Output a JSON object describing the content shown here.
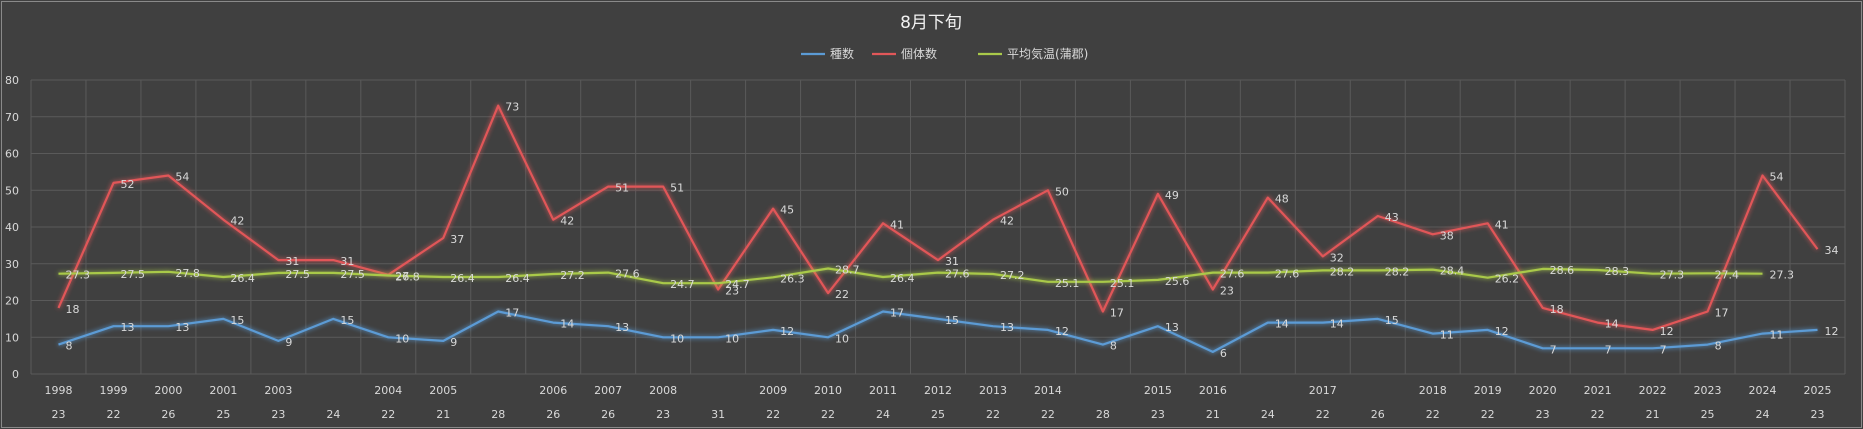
{
  "chart_data": {
    "type": "line",
    "title": "8月下旬",
    "ylim": [
      0,
      80
    ],
    "yticks": [
      0,
      10,
      20,
      30,
      40,
      50,
      60,
      70,
      80
    ],
    "grid": true,
    "legend_position": "top-center",
    "x_years": [
      "1998",
      "1999",
      "2000",
      "2001",
      "2003",
      "",
      "2004",
      "2005",
      "",
      "2006",
      "2007",
      "2008",
      "",
      "2009",
      "2010",
      "2011",
      "2012",
      "2013",
      "2014",
      "",
      "2015",
      "2016",
      "",
      "2017",
      "",
      "2018",
      "2019",
      "2020",
      "2021",
      "2022",
      "2023",
      "2024",
      "2025"
    ],
    "x_days": [
      "23",
      "22",
      "26",
      "25",
      "23",
      "24",
      "22",
      "21",
      "28",
      "26",
      "26",
      "23",
      "31",
      "22",
      "22",
      "24",
      "25",
      "22",
      "22",
      "28",
      "23",
      "21",
      "24",
      "22",
      "26",
      "22",
      "22",
      "23",
      "22",
      "21",
      "25",
      "24",
      "23"
    ],
    "series": [
      {
        "name": "種数",
        "color": "#5b9bd5",
        "values": [
          8,
          13,
          13,
          15,
          9,
          15,
          10,
          9,
          17,
          14,
          13,
          10,
          10,
          12,
          10,
          17,
          15,
          13,
          12,
          8,
          13,
          6,
          14,
          14,
          15,
          11,
          12,
          7,
          7,
          7,
          8,
          11,
          12
        ]
      },
      {
        "name": "個体数",
        "color": "#e15759",
        "values": [
          18,
          52,
          54,
          42,
          31,
          31,
          27,
          37,
          73,
          42,
          51,
          51,
          23,
          45,
          22,
          41,
          31,
          42,
          50,
          17,
          49,
          23,
          48,
          32,
          43,
          38,
          41,
          18,
          14,
          12,
          17,
          54,
          34
        ]
      },
      {
        "name": "平均気温(蒲郡)",
        "color": "#a9c94a",
        "values": [
          27.3,
          27.5,
          27.8,
          26.4,
          27.5,
          27.5,
          26.8,
          26.4,
          26.4,
          27.2,
          27.6,
          24.7,
          24.7,
          26.3,
          28.7,
          26.4,
          27.6,
          27.2,
          25.1,
          25.1,
          25.6,
          27.6,
          27.6,
          28.2,
          28.2,
          28.4,
          26.2,
          28.6,
          28.3,
          27.3,
          27.4,
          27.3,
          null
        ]
      }
    ]
  }
}
